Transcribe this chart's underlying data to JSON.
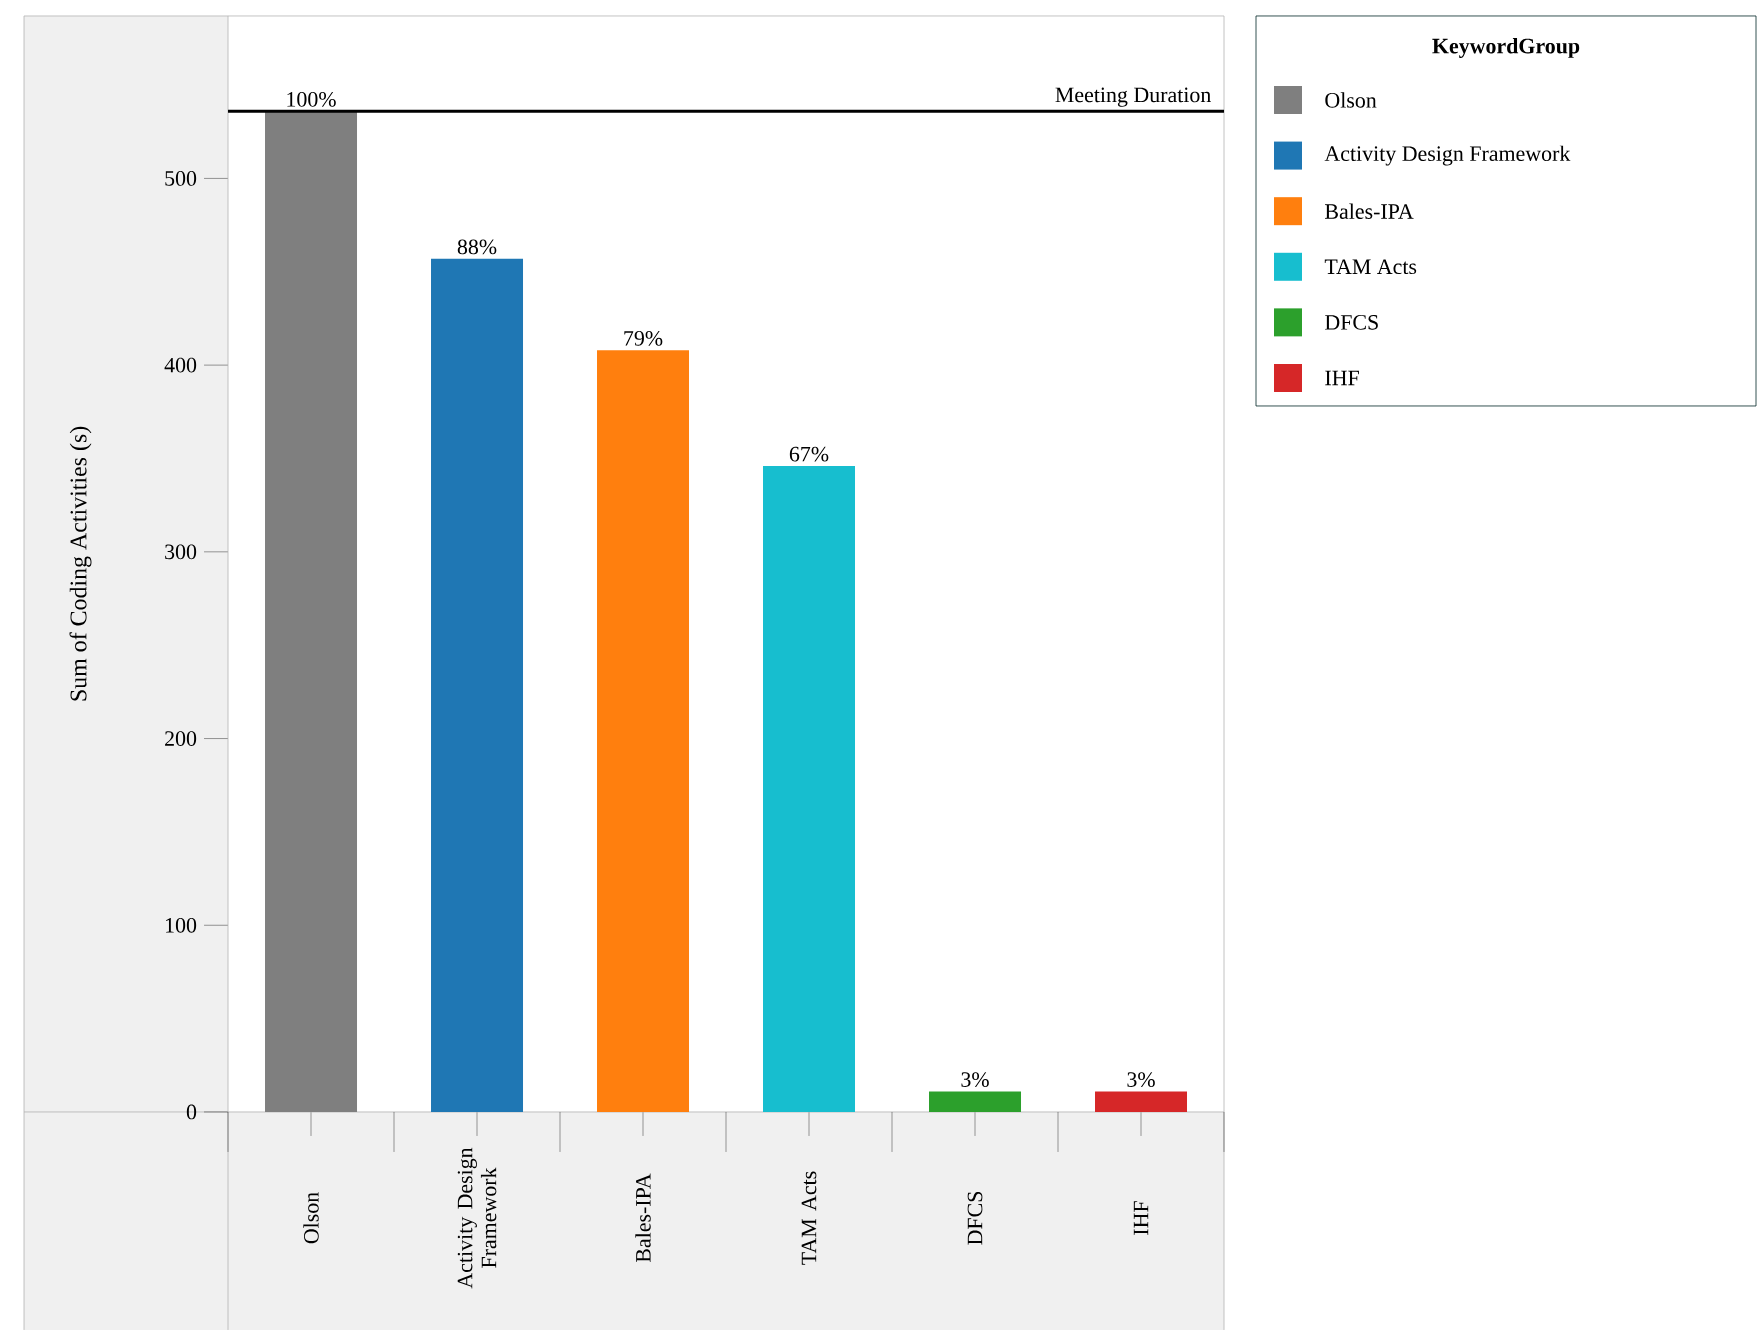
{
  "chart_data": {
    "type": "bar",
    "categories": [
      "Olson",
      "Activity Design Framework",
      "Bales-IPA",
      "TAM Acts",
      "DFCS",
      "IHF"
    ],
    "values": [
      536,
      457,
      408,
      346,
      11,
      11
    ],
    "colors": [
      "#7f7f7f",
      "#1f77b4",
      "#ff7f0e",
      "#17becf",
      "#2ca02c",
      "#d62728"
    ],
    "annotations": [
      {
        "text": "100%",
        "x": "Olson",
        "y": 536
      },
      {
        "text": "88%",
        "x": "Activity Design Framework",
        "y": 457
      },
      {
        "text": "79%",
        "x": "Bales-IPA",
        "y": 408
      },
      {
        "text": "67%",
        "x": "TAM Acts",
        "y": 346
      },
      {
        "text": "3%",
        "x": "DFCS",
        "y": 11
      },
      {
        "text": "3%",
        "x": "IHF",
        "y": 11
      }
    ],
    "ylabel": "Sum of Coding Activities (s)",
    "legend_title": "KeywordGroup",
    "legend": "top right",
    "ylim": [
      0,
      587
    ],
    "yticks": [
      0,
      100,
      200,
      300,
      400,
      500
    ],
    "ref_lines": [
      {
        "axis": "y",
        "value": 536,
        "label": "Meeting Duration",
        "color": "#000000"
      }
    ]
  }
}
